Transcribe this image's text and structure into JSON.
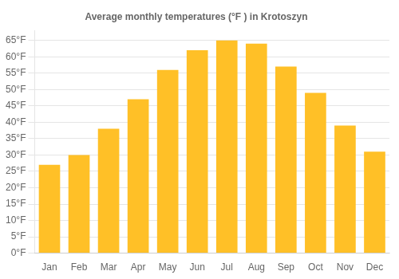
{
  "chart_data": {
    "type": "bar",
    "title": "Average monthly temperatures (°F ) in Krotoszyn",
    "categories": [
      "Jan",
      "Feb",
      "Mar",
      "Apr",
      "May",
      "Jun",
      "Jul",
      "Aug",
      "Sep",
      "Oct",
      "Nov",
      "Dec"
    ],
    "values": [
      27,
      30,
      38,
      47,
      56,
      62,
      65,
      64,
      57,
      49,
      39,
      31
    ],
    "color": "#FFC027",
    "ylim": [
      0,
      68
    ],
    "yticks": [
      {
        "value": 0,
        "label": "0°F"
      },
      {
        "value": 5,
        "label": "5°F"
      },
      {
        "value": 10,
        "label": "10°F"
      },
      {
        "value": 15,
        "label": "15°F"
      },
      {
        "value": 20,
        "label": "20°F"
      },
      {
        "value": 25,
        "label": "25°F"
      },
      {
        "value": 30,
        "label": "30°F"
      },
      {
        "value": 35,
        "label": "35°F"
      },
      {
        "value": 40,
        "label": "40°F"
      },
      {
        "value": 45,
        "label": "45°F"
      },
      {
        "value": 50,
        "label": "50°F"
      },
      {
        "value": 55,
        "label": "55°F"
      },
      {
        "value": 60,
        "label": "60°F"
      },
      {
        "value": 65,
        "label": "65°F"
      }
    ],
    "grid": true
  }
}
